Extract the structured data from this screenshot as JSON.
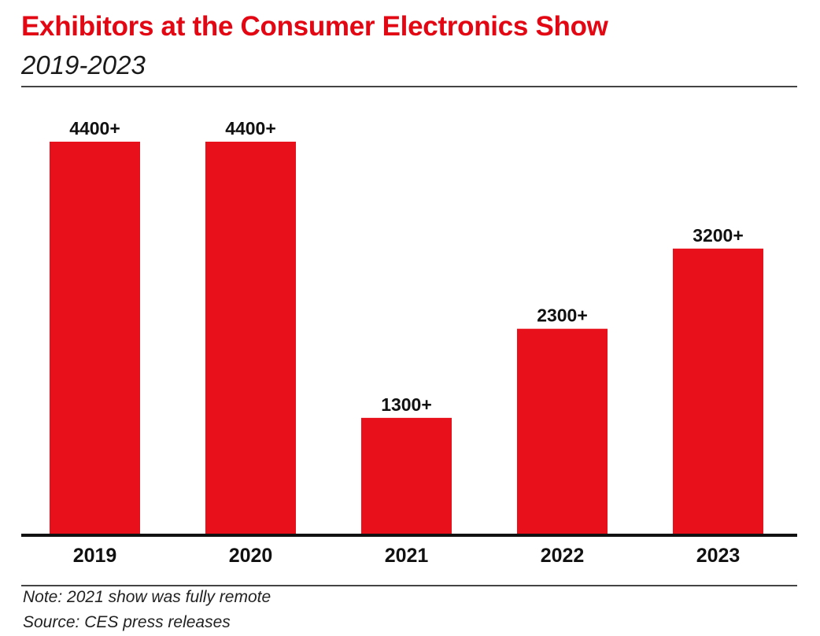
{
  "header": {
    "title": "Exhibitors at the Consumer Electronics Show",
    "subtitle": "2019-2023"
  },
  "footer": {
    "note": "Note: 2021 show was fully remote",
    "source": "Source: CES press releases"
  },
  "colors": {
    "title": "#e30613",
    "bar": "#e8101b",
    "text": "#111111",
    "axis": "#111111"
  },
  "chart_data": {
    "type": "bar",
    "title": "Exhibitors at the Consumer Electronics Show",
    "subtitle": "2019-2023",
    "xlabel": "",
    "ylabel": "",
    "categories": [
      "2019",
      "2020",
      "2021",
      "2022",
      "2023"
    ],
    "values": [
      4400,
      4400,
      1300,
      2300,
      3200
    ],
    "data_labels": [
      "4400+",
      "4400+",
      "1300+",
      "2300+",
      "3200+"
    ],
    "ylim": [
      0,
      4400
    ],
    "grid": false,
    "legend": "none",
    "y_axis_visible": false
  }
}
